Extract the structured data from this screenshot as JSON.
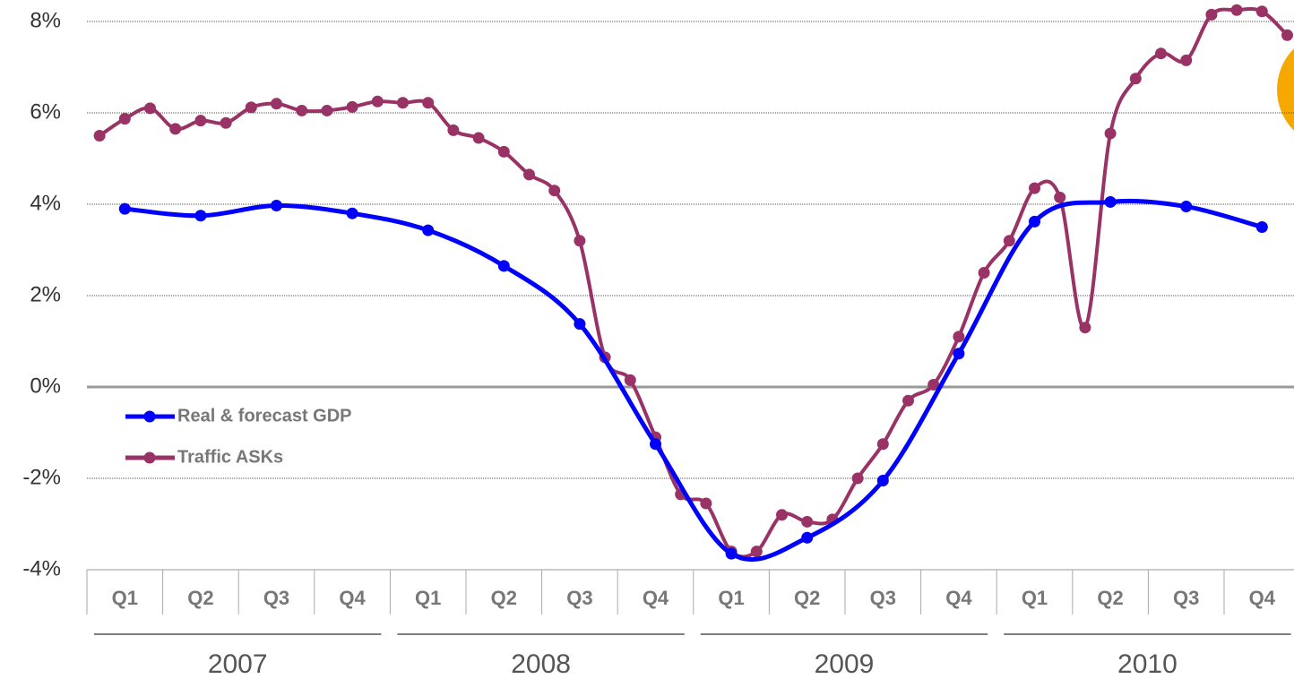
{
  "chart_data": {
    "type": "line",
    "quarters": [
      "Q1",
      "Q2",
      "Q3",
      "Q4",
      "Q1",
      "Q2",
      "Q3",
      "Q4",
      "Q1",
      "Q2",
      "Q3",
      "Q4",
      "Q1",
      "Q2",
      "Q3",
      "Q4"
    ],
    "years": [
      "2007",
      "2008",
      "2009",
      "2010"
    ],
    "series": [
      {
        "name": "Real & forecast GDP",
        "color": "#0000ff",
        "points_per_quarter": 1,
        "values": [
          3.9,
          3.75,
          3.97,
          3.8,
          3.43,
          2.65,
          1.38,
          -1.25,
          -3.65,
          -3.3,
          -2.05,
          0.73,
          3.62,
          4.05,
          3.95,
          3.5
        ]
      },
      {
        "name": "Traffic ASKs",
        "color": "#993366",
        "points_per_quarter": 3,
        "values": [
          5.5,
          5.87,
          6.1,
          5.65,
          5.83,
          5.78,
          6.12,
          6.2,
          6.05,
          6.05,
          6.13,
          6.25,
          6.22,
          6.22,
          5.62,
          5.45,
          5.15,
          4.65,
          4.3,
          3.2,
          0.65,
          0.15,
          -1.1,
          -2.35,
          -2.55,
          -3.6,
          -3.6,
          -2.8,
          -2.95,
          -2.9,
          -2.0,
          -1.25,
          -0.3,
          0.05,
          1.1,
          2.5,
          3.2,
          4.35,
          4.15,
          1.3,
          5.55,
          6.75,
          7.3,
          7.15,
          8.15,
          8.25,
          8.22,
          7.7
        ]
      }
    ],
    "ylim": [
      -4,
      8
    ],
    "yticks": [
      {
        "value": -4,
        "label": "-4%"
      },
      {
        "value": -2,
        "label": "-2%"
      },
      {
        "value": 0,
        "label": "0%"
      },
      {
        "value": 2,
        "label": "2%"
      },
      {
        "value": 4,
        "label": "4%"
      },
      {
        "value": 6,
        "label": "6%"
      },
      {
        "value": 8,
        "label": "8%"
      }
    ],
    "grid": true
  }
}
